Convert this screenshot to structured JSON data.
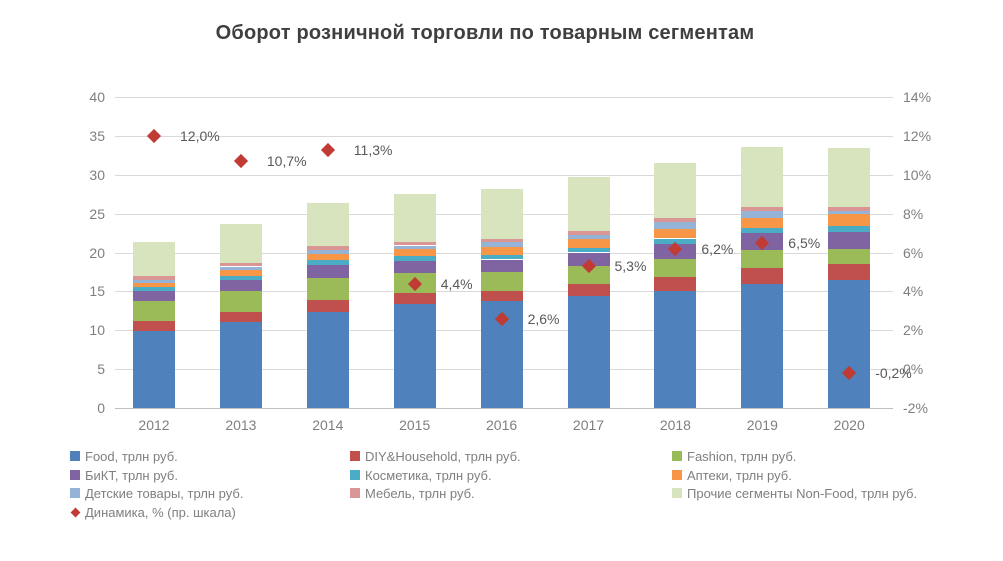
{
  "title": "Оборот розничной торговли по товарным сегментам",
  "colors": {
    "title_text": "#3f3f3f",
    "axis_text": "#7f7f7f",
    "data_label_text": "#595959",
    "gridline": "#d9d9d9",
    "axis_line": "#bfbfbf",
    "background": "#ffffff"
  },
  "chart_data": {
    "type": "bar",
    "stacked": true,
    "grid": true,
    "legend_position": "bottom",
    "categories": [
      "2012",
      "2013",
      "2014",
      "2015",
      "2016",
      "2017",
      "2018",
      "2019",
      "2020"
    ],
    "left_axis": {
      "min": 0,
      "max": 40,
      "step": 5,
      "ticks": [
        "0",
        "5",
        "10",
        "15",
        "20",
        "25",
        "30",
        "35",
        "40"
      ]
    },
    "right_axis": {
      "min": -2,
      "max": 14,
      "step": 2,
      "ticks": [
        "-2%",
        "0%",
        "2%",
        "4%",
        "6%",
        "8%",
        "10%",
        "12%",
        "14%"
      ]
    },
    "series": [
      {
        "name": "Food, трлн руб.",
        "color": "#4f81bd",
        "values": [
          9.9,
          11.0,
          12.4,
          13.4,
          13.7,
          14.4,
          15.1,
          16.0,
          16.5
        ]
      },
      {
        "name": "DIY&Household, трлн руб.",
        "color": "#c0504d",
        "values": [
          1.3,
          1.4,
          1.5,
          1.4,
          1.4,
          1.5,
          1.7,
          2.0,
          2.0
        ]
      },
      {
        "name": "Fashion, трлн руб.",
        "color": "#9bbb59",
        "values": [
          2.6,
          2.7,
          2.8,
          2.6,
          2.4,
          2.4,
          2.4,
          2.3,
          1.9
        ]
      },
      {
        "name": "БиКТ, трлн руб.",
        "color": "#8064a2",
        "values": [
          1.2,
          1.4,
          1.7,
          1.5,
          1.6,
          1.7,
          1.9,
          2.2,
          2.2
        ]
      },
      {
        "name": "Косметика, трлн руб.",
        "color": "#4bacc6",
        "values": [
          0.5,
          0.5,
          0.6,
          0.6,
          0.6,
          0.6,
          0.7,
          0.7,
          0.8
        ]
      },
      {
        "name": "Аптеки, трлн руб.",
        "color": "#f79646",
        "values": [
          0.6,
          0.7,
          0.8,
          0.9,
          1.0,
          1.1,
          1.2,
          1.3,
          1.5
        ]
      },
      {
        "name": "Детские товары, трлн руб.",
        "color": "#95b3d7",
        "values": [
          0.4,
          0.5,
          0.5,
          0.5,
          0.6,
          0.6,
          0.9,
          0.8,
          0.5
        ]
      },
      {
        "name": "Мебель, трлн руб.",
        "color": "#d99694",
        "values": [
          0.5,
          0.5,
          0.5,
          0.4,
          0.4,
          0.5,
          0.5,
          0.5,
          0.4
        ]
      },
      {
        "name": "Прочие сегменты Non-Food, трлн руб.",
        "color": "#d7e4bd",
        "values": [
          4.4,
          5.0,
          5.6,
          6.2,
          6.5,
          6.9,
          7.1,
          7.8,
          7.7
        ]
      }
    ],
    "totals": [
      21.4,
      23.7,
      26.4,
      27.5,
      28.2,
      29.7,
      31.5,
      33.6,
      33.5
    ],
    "dynamics": {
      "name": "Динамика, % (пр. шкала)",
      "marker": "diamond",
      "color": "#bf3b33",
      "axis": "right",
      "values": [
        12.0,
        10.7,
        11.3,
        4.4,
        2.6,
        5.3,
        6.2,
        6.5,
        -0.2
      ],
      "labels": [
        "12,0%",
        "10,7%",
        "11,3%",
        "4,4%",
        "2,6%",
        "5,3%",
        "6,2%",
        "6,5%",
        "-0,2%"
      ]
    }
  }
}
